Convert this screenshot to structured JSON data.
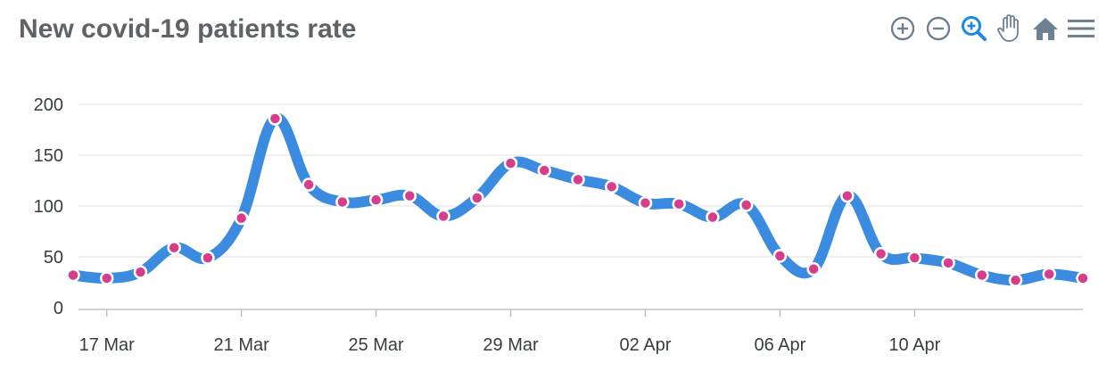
{
  "title": "New covid-19 patients rate",
  "toolbar": {
    "icons": [
      "zoom-in-icon",
      "zoom-out-icon",
      "selection-zoom-icon",
      "pan-hand-icon",
      "home-reset-icon",
      "menu-icon"
    ],
    "active_color": "#1e88e5",
    "inactive_color": "#6e8192"
  },
  "colors": {
    "line": "#3b8be0",
    "marker_fill": "#d63d8c",
    "marker_stroke": "#ffffff",
    "grid": "#e2e2e2",
    "axis": "#b6b6b6"
  },
  "chart_data": {
    "type": "line",
    "title": "New covid-19 patients rate",
    "xlabel": "",
    "ylabel": "",
    "ylim": [
      0,
      200
    ],
    "yticks": [
      "0",
      "50",
      "100",
      "150",
      "200"
    ],
    "xtick_labels": [
      "17 Mar",
      "21 Mar",
      "25 Mar",
      "29 Mar",
      "02 Apr",
      "06 Apr",
      "10 Apr"
    ],
    "x_start": "2020-03-16",
    "x_end": "2020-04-15",
    "grid": true,
    "series": [
      {
        "name": "",
        "x": [
          "2020-03-16",
          "2020-03-17",
          "2020-03-18",
          "2020-03-19",
          "2020-03-20",
          "2020-03-21",
          "2020-03-22",
          "2020-03-23",
          "2020-03-24",
          "2020-03-25",
          "2020-03-26",
          "2020-03-27",
          "2020-03-28",
          "2020-03-29",
          "2020-03-30",
          "2020-03-31",
          "2020-04-01",
          "2020-04-02",
          "2020-04-03",
          "2020-04-04",
          "2020-04-05",
          "2020-04-06",
          "2020-04-07",
          "2020-04-08",
          "2020-04-09",
          "2020-04-10",
          "2020-04-11",
          "2020-04-12",
          "2020-04-13",
          "2020-04-14",
          "2020-04-15"
        ],
        "values": [
          32,
          29,
          35,
          59,
          49,
          88,
          186,
          121,
          104,
          106,
          110,
          90,
          108,
          142,
          135,
          126,
          119,
          103,
          102,
          89,
          101,
          51,
          38,
          110,
          53,
          49,
          44,
          32,
          27,
          33,
          29
        ]
      }
    ]
  }
}
